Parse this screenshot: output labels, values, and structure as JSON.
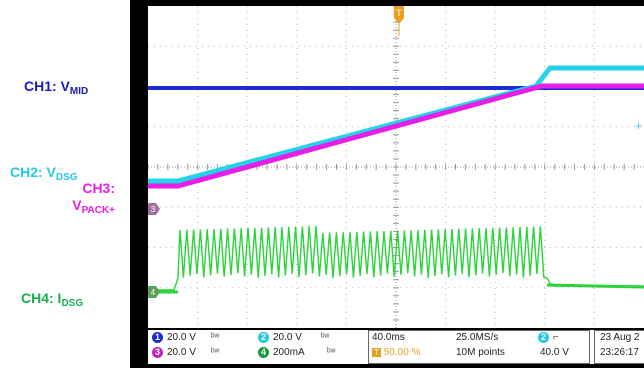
{
  "labels": {
    "ch1": {
      "prefix": "CH1: V",
      "sub": "MID",
      "color": "#1a1ab8"
    },
    "ch2": {
      "prefix": "CH2: V",
      "sub": "DSG",
      "color": "#23c8e8"
    },
    "ch3_line1": "CH3:",
    "ch3_line2_prefix": "V",
    "ch3_line2_sub": "PACK+",
    "ch3_color": "#e61ee6",
    "ch4": {
      "prefix": "CH4: I",
      "sub": "DSG",
      "color": "#15b04a"
    }
  },
  "status": {
    "ch1": {
      "num": "1",
      "scale": "20.0 V",
      "color": "#1a2bd6"
    },
    "ch2": {
      "num": "2",
      "scale": "20.0 V",
      "color": "#23c8e8"
    },
    "ch3": {
      "num": "3",
      "scale": "20.0 V",
      "color": "#c21ec2"
    },
    "ch4": {
      "num": "4",
      "scale": "200mA",
      "color": "#1a9a3c"
    },
    "timebase": "40.0ms",
    "trigger_pos": "50.00 %",
    "sample_rate": "25.0MS/s",
    "record_length": "10M points",
    "trigger_channel": "2",
    "trigger_level": "40.0 V",
    "date": "23 Aug 2",
    "time": "23:26:17"
  },
  "markers": {
    "trigger_marker": "T",
    "ch3_marker": "3",
    "ch4_marker": "4"
  },
  "colors": {
    "ch1": "#1a2bd6",
    "ch2": "#23d4e8",
    "ch3": "#e61ee6",
    "ch4": "#2bd43c",
    "grid": "#b8b8b8",
    "trigger": "#e8a020"
  }
}
